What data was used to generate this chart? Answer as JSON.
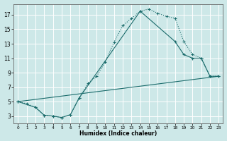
{
  "xlabel": "Humidex (Indice chaleur)",
  "bg_color": "#cde8e8",
  "grid_color": "#ffffff",
  "line_color": "#1a6b6b",
  "xlim": [
    -0.5,
    23.5
  ],
  "ylim": [
    2.0,
    18.5
  ],
  "xticks": [
    0,
    1,
    2,
    3,
    4,
    5,
    6,
    7,
    8,
    9,
    10,
    11,
    12,
    13,
    14,
    15,
    16,
    17,
    18,
    19,
    20,
    21,
    22,
    23
  ],
  "yticks": [
    3,
    5,
    7,
    9,
    11,
    13,
    15,
    17
  ],
  "curve1_x": [
    0,
    1,
    2,
    3,
    4,
    5,
    6,
    7,
    8,
    9,
    10,
    11,
    12,
    13,
    14,
    15,
    16,
    17,
    18,
    19,
    20,
    21,
    22,
    23
  ],
  "curve1_y": [
    5.0,
    4.7,
    4.2,
    3.1,
    3.0,
    2.8,
    3.2,
    5.5,
    7.5,
    8.5,
    10.5,
    13.2,
    15.5,
    16.5,
    17.5,
    17.8,
    17.2,
    16.8,
    16.5,
    13.3,
    11.5,
    11.0,
    8.5,
    8.5
  ],
  "curve2_x": [
    0,
    2,
    3,
    4,
    5,
    6,
    7,
    14,
    18,
    19,
    20,
    21,
    22,
    23
  ],
  "curve2_y": [
    5.0,
    4.2,
    3.1,
    3.0,
    2.8,
    3.2,
    5.5,
    17.5,
    13.3,
    11.5,
    11.0,
    11.0,
    8.5,
    8.5
  ],
  "curve3_x": [
    0,
    23
  ],
  "curve3_y": [
    5.0,
    8.5
  ]
}
